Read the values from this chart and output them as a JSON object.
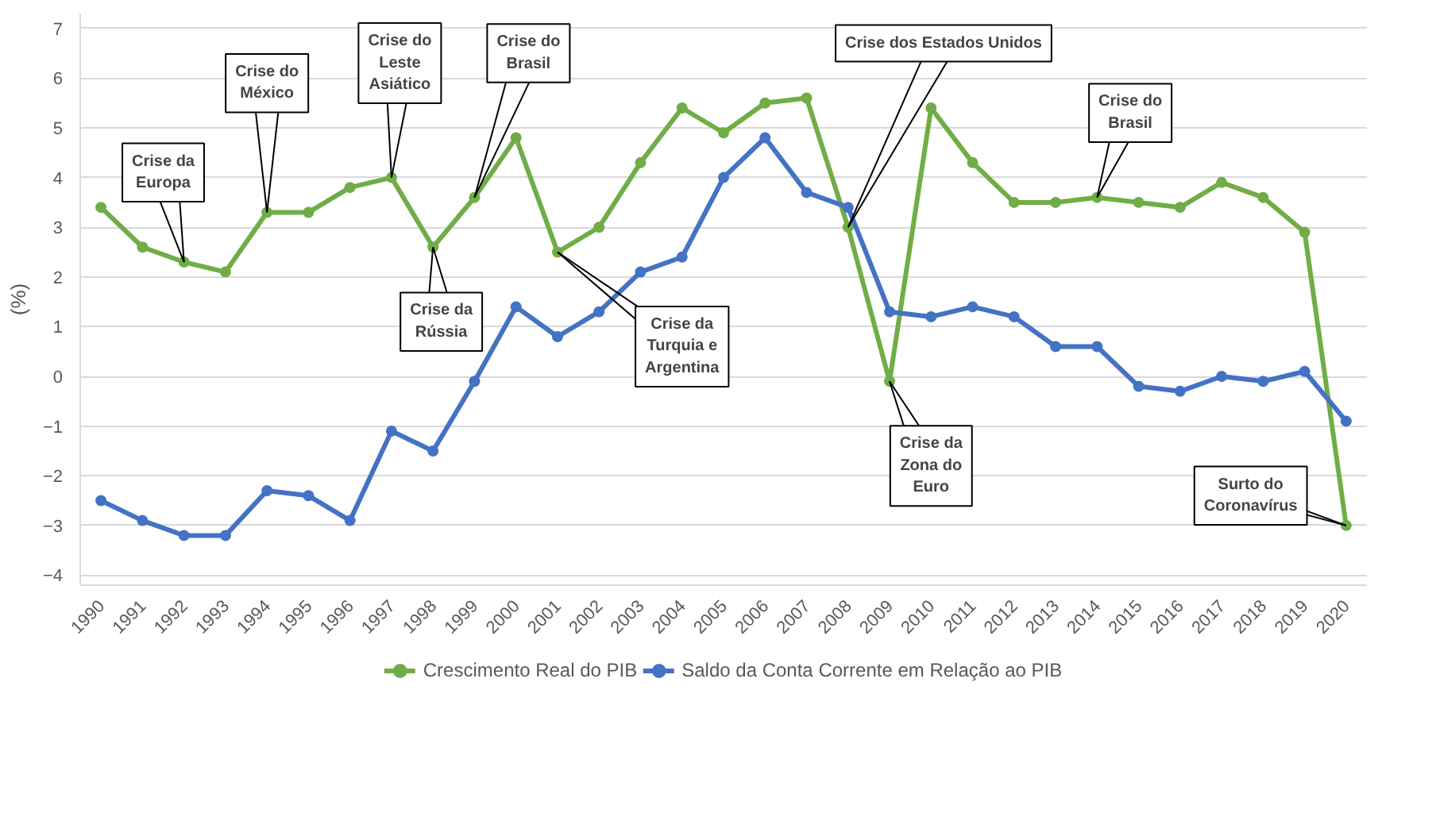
{
  "chart_data": {
    "type": "line",
    "ylabel": "(%)",
    "x": [
      1990,
      1991,
      1992,
      1993,
      1994,
      1995,
      1996,
      1997,
      1998,
      1999,
      2000,
      2001,
      2002,
      2003,
      2004,
      2005,
      2006,
      2007,
      2008,
      2009,
      2010,
      2011,
      2012,
      2013,
      2014,
      2015,
      2016,
      2017,
      2018,
      2019,
      2020
    ],
    "series": [
      {
        "name": "Crescimento Real do PIB",
        "color": "#70ad47",
        "values": [
          3.4,
          2.6,
          2.3,
          2.1,
          3.3,
          3.3,
          3.8,
          4.0,
          2.6,
          3.6,
          4.8,
          2.5,
          3.0,
          4.3,
          5.4,
          4.9,
          5.5,
          5.6,
          3.0,
          -0.1,
          5.4,
          4.3,
          3.5,
          3.5,
          3.6,
          3.5,
          3.4,
          3.9,
          3.6,
          2.9,
          -3.0
        ]
      },
      {
        "name": "Saldo da Conta Corrente em Relação ao PIB",
        "color": "#4472c4",
        "values": [
          -2.5,
          -2.9,
          -3.2,
          -3.2,
          -2.3,
          -2.4,
          -2.9,
          -1.1,
          -1.5,
          -0.1,
          1.4,
          0.8,
          1.3,
          2.1,
          2.4,
          4.0,
          4.8,
          3.7,
          3.4,
          1.3,
          1.2,
          1.4,
          1.2,
          0.6,
          0.6,
          -0.2,
          -0.3,
          0.0,
          -0.1,
          0.1,
          -0.9
        ]
      }
    ],
    "xlim": [
      1989.5,
      2020.5
    ],
    "xticks": [
      1990,
      1991,
      1992,
      1993,
      1994,
      1995,
      1996,
      1997,
      1998,
      1999,
      2000,
      2001,
      2002,
      2003,
      2004,
      2005,
      2006,
      2007,
      2008,
      2009,
      2010,
      2011,
      2012,
      2013,
      2014,
      2015,
      2016,
      2017,
      2018,
      2019,
      2020
    ],
    "ylim": [
      -4.2,
      7.3
    ],
    "yticks": [
      -4,
      -3,
      -2,
      -1,
      0,
      1,
      2,
      3,
      4,
      5,
      6,
      7
    ],
    "grid": "y",
    "legend": "bottom",
    "marker": "circle",
    "line_style": "solid",
    "annotations": [
      {
        "text": "Crise da\nEuropa",
        "x": 1992,
        "y": 2.3
      },
      {
        "text": "Crise do\nMéxico",
        "x": 1994,
        "y": 3.3
      },
      {
        "text": "Crise do\nLeste\nAsiático",
        "x": 1997,
        "y": 4.0
      },
      {
        "text": "Crise do\nBrasil",
        "x": 1999,
        "y": 3.6
      },
      {
        "text": "Crise da\nRússia",
        "x": 1998,
        "y": 2.6
      },
      {
        "text": "Crise da\nTurquia e\nArgentina",
        "x": 2001,
        "y": 2.5
      },
      {
        "text": "Crise dos Estados Unidos",
        "x": 2008,
        "y": 3.0
      },
      {
        "text": "Crise da\nZona do\nEuro",
        "x": 2009,
        "y": -0.1
      },
      {
        "text": "Crise do\nBrasil",
        "x": 2014,
        "y": 3.6
      },
      {
        "text": "Surto do\nCoronavírus",
        "x": 2020,
        "y": -3.0
      }
    ]
  }
}
